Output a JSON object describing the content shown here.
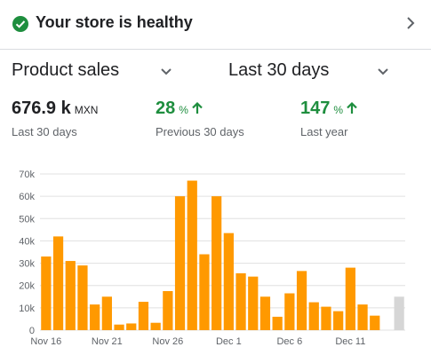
{
  "health": {
    "title": "Your store is healthy",
    "icon": "check-circle-icon",
    "status_color": "#1e8e3e"
  },
  "filters": {
    "metric": "Product sales",
    "range": "Last 30 days"
  },
  "stats": {
    "sales": {
      "value": "676.9 k",
      "unit": "MXN",
      "label": "Last 30 days"
    },
    "previous": {
      "value": "28",
      "unit": "%",
      "label": "Previous 30 days",
      "trend": "up"
    },
    "year": {
      "value": "147",
      "unit": "%",
      "label": "Last year",
      "trend": "up"
    }
  },
  "colors": {
    "accent_bar": "#ff9900",
    "pending_bar": "#d6d6d6",
    "positive": "#1e8e3e"
  },
  "chart_data": {
    "type": "bar",
    "x_tick_labels": [
      "Nov 16",
      "Nov 21",
      "Nov 26",
      "Dec 1",
      "Dec 6",
      "Dec 11"
    ],
    "x": [
      "Nov 16",
      "Nov 17",
      "Nov 18",
      "Nov 19",
      "Nov 20",
      "Nov 21",
      "Nov 22",
      "Nov 23",
      "Nov 24",
      "Nov 25",
      "Nov 26",
      "Nov 27",
      "Nov 28",
      "Nov 29",
      "Nov 30",
      "Dec 1",
      "Dec 2",
      "Dec 3",
      "Dec 4",
      "Dec 5",
      "Dec 6",
      "Dec 7",
      "Dec 8",
      "Dec 9",
      "Dec 10",
      "Dec 11",
      "Dec 12",
      "Dec 13",
      "Dec 14",
      "Dec 15"
    ],
    "values": [
      33000,
      42000,
      31000,
      29000,
      11500,
      15000,
      2500,
      3000,
      12700,
      3300,
      17500,
      60000,
      67000,
      34000,
      60000,
      43500,
      25500,
      24000,
      15000,
      6000,
      16500,
      26500,
      12500,
      10500,
      8500,
      28000,
      11500,
      6500,
      null,
      15000
    ],
    "pending_index": 29,
    "ylim": [
      0,
      70000
    ],
    "y_tick_labels": [
      "0",
      "10k",
      "20k",
      "30k",
      "40k",
      "50k",
      "60k",
      "70k"
    ],
    "y_ticks": [
      0,
      10000,
      20000,
      30000,
      40000,
      50000,
      60000,
      70000
    ],
    "grid": true,
    "xlabel": "",
    "ylabel": ""
  }
}
